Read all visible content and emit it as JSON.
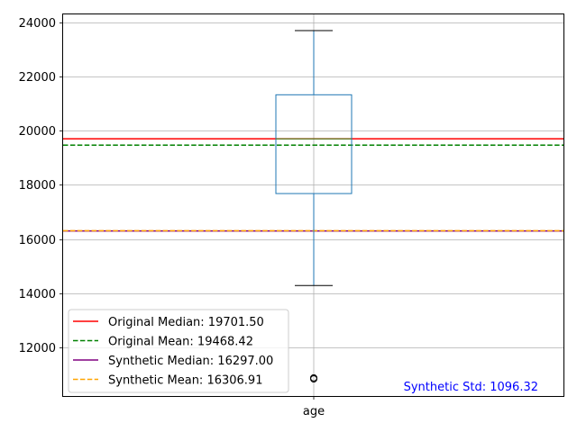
{
  "chart_data": {
    "type": "boxplot",
    "categories": [
      "age"
    ],
    "ylim": [
      10200,
      24300
    ],
    "yticks": [
      12000,
      14000,
      16000,
      18000,
      20000,
      22000,
      24000
    ],
    "ytick_labels": [
      "12000",
      "14000",
      "16000",
      "18000",
      "20000",
      "22000",
      "24000"
    ],
    "grid": true,
    "box": {
      "whisker_low": 14280,
      "q1": 17680,
      "median": 19701.5,
      "q3": 21330,
      "whisker_high": 23700,
      "outliers": [
        10830,
        10870
      ],
      "color": "#1f77b4",
      "median_color": "#2ca02c"
    },
    "reference_lines": [
      {
        "label": "Original Median: 19701.50",
        "value": 19701.5,
        "color": "#ff0000",
        "style": "solid"
      },
      {
        "label": "Original Mean: 19468.42",
        "value": 19468.42,
        "color": "#008000",
        "style": "dashed"
      },
      {
        "label": "Synthetic Median: 16297.00",
        "value": 16297.0,
        "color": "#800080",
        "style": "solid"
      },
      {
        "label": "Synthetic Mean: 16306.91",
        "value": 16306.91,
        "color": "#ffa500",
        "style": "dashed"
      }
    ],
    "legend_position": "lower-left",
    "annotation": {
      "text": "Synthetic Std: 1096.32",
      "color": "#0000ff",
      "position": "lower-right"
    }
  }
}
